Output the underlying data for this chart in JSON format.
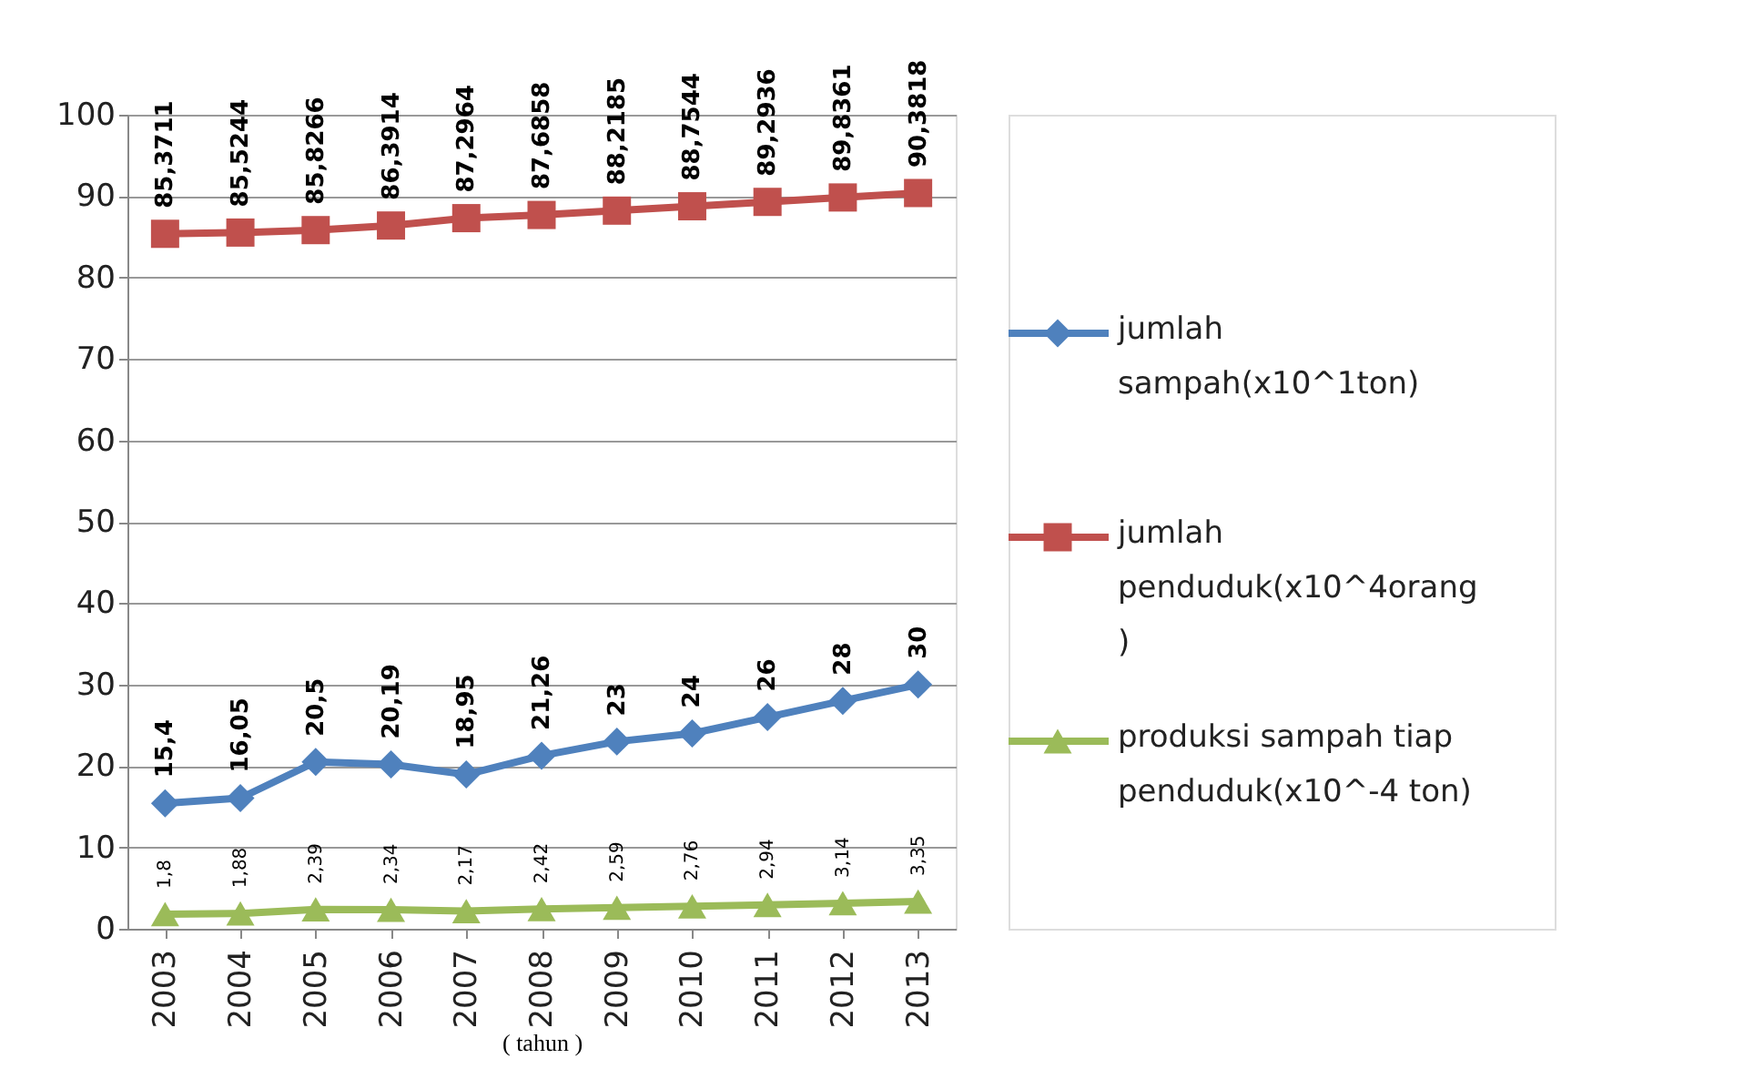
{
  "chart_data": {
    "type": "line",
    "xlabel": "( tahun )",
    "categories": [
      "2003",
      "2004",
      "2005",
      "2006",
      "2007",
      "2008",
      "2009",
      "2010",
      "2011",
      "2012",
      "2013"
    ],
    "series": [
      {
        "name": "jumlah sampah(x10^1ton)",
        "color": "#4f81bd",
        "marker": "diamond",
        "values": [
          15.4,
          16.05,
          20.5,
          20.19,
          18.95,
          21.26,
          23,
          24,
          26,
          28,
          30
        ],
        "value_labels": [
          "15,4",
          "16,05",
          "20,5",
          "20,19",
          "18,95",
          "21,26",
          "23",
          "24",
          "26",
          "28",
          "30"
        ]
      },
      {
        "name": "jumlah penduduk(x10^4orang )",
        "color": "#c0504d",
        "marker": "square",
        "values": [
          85.3711,
          85.5244,
          85.8266,
          86.3914,
          87.2964,
          87.6858,
          88.2185,
          88.7544,
          89.2936,
          89.8361,
          90.3818
        ],
        "value_labels": [
          "85,3711",
          "85,5244",
          "85,8266",
          "86,3914",
          "87,2964",
          "87,6858",
          "88,2185",
          "88,7544",
          "89,2936",
          "89,8361",
          "90,3818"
        ]
      },
      {
        "name": "produksi sampah tiap penduduk(x10^-4 ton)",
        "color": "#9bbb59",
        "marker": "triangle",
        "values": [
          1.8,
          1.88,
          2.39,
          2.34,
          2.17,
          2.42,
          2.59,
          2.76,
          2.94,
          3.14,
          3.35
        ],
        "value_labels": [
          "1,8",
          "1,88",
          "2,39",
          "2,34",
          "2,17",
          "2,42",
          "2,59",
          "2,76",
          "2,94",
          "3,14",
          "3,35"
        ]
      }
    ],
    "ylim": [
      0,
      100
    ],
    "yticks": [
      0,
      10,
      20,
      30,
      40,
      50,
      60,
      70,
      80,
      90,
      100
    ],
    "grid": "y",
    "legend": "right",
    "line_style": "solid"
  }
}
